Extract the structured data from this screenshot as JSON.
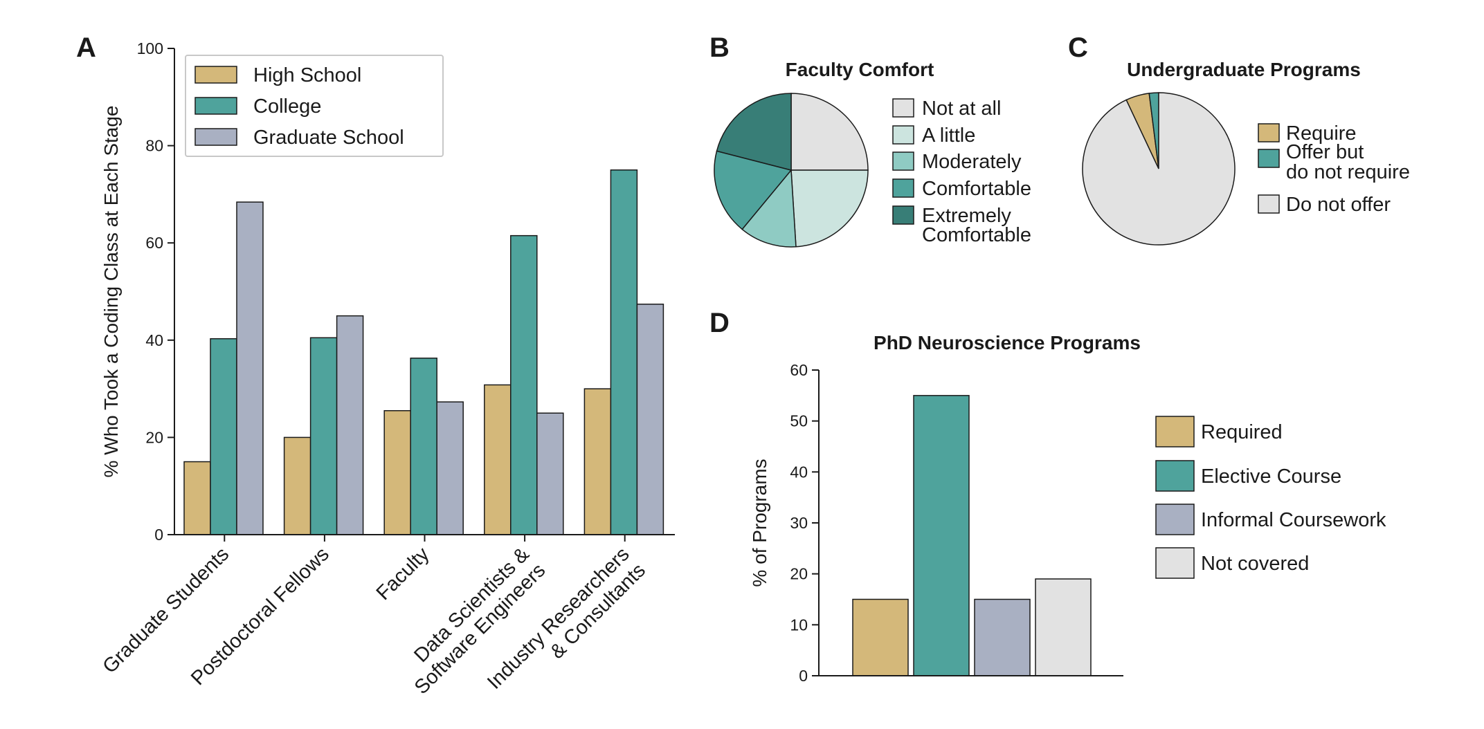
{
  "panels": {
    "a": {
      "letter": "A"
    },
    "b": {
      "letter": "B"
    },
    "c": {
      "letter": "C"
    },
    "d": {
      "letter": "D"
    }
  },
  "chart_data": [
    {
      "id": "A",
      "type": "bar",
      "title": "",
      "ylabel": "% Who Took a Coding Class at Each Stage",
      "xlabel": "",
      "ylim": [
        0,
        100
      ],
      "yticks": [
        0,
        20,
        40,
        60,
        80,
        100
      ],
      "categories": [
        "Graduate Students",
        "Postdoctoral Fellows",
        "Faculty",
        "Data Scientists & Software Engineers",
        "Industry Researchers & Consultants"
      ],
      "category_lines": [
        [
          "Graduate Students"
        ],
        [
          "Postdoctoral Fellows"
        ],
        [
          "Faculty"
        ],
        [
          "Data Scientists &",
          "Software Engineers"
        ],
        [
          "Industry Researchers",
          "& Consultants"
        ]
      ],
      "series": [
        {
          "name": "High School",
          "color": "#d4b87a",
          "values": [
            15,
            20,
            25.5,
            30.8,
            30
          ]
        },
        {
          "name": "College",
          "color": "#4fa39c",
          "values": [
            40.3,
            40.5,
            36.3,
            61.5,
            75
          ]
        },
        {
          "name": "Graduate School",
          "color": "#a9b0c2",
          "values": [
            68.4,
            45,
            27.3,
            25,
            47.4
          ]
        }
      ],
      "legend": "top-left"
    },
    {
      "id": "B",
      "type": "pie",
      "title": "Faculty Comfort",
      "slices": [
        {
          "label": "Not at all",
          "color": "#e2e2e2",
          "value": 25
        },
        {
          "label": "A little",
          "color": "#cce4df",
          "value": 24
        },
        {
          "label": "Moderately",
          "color": "#8fcbc3",
          "value": 12
        },
        {
          "label": "Comfortable",
          "color": "#4fa39c",
          "value": 18
        },
        {
          "label": "Extremely Comfortable",
          "color": "#387e77",
          "value": 21
        }
      ],
      "legend_lines": [
        [
          "Not at all"
        ],
        [
          "A little"
        ],
        [
          "Moderately"
        ],
        [
          "Comfortable"
        ],
        [
          "Extremely",
          "Comfortable"
        ]
      ],
      "legend": "right"
    },
    {
      "id": "C",
      "type": "pie",
      "title": "Undergraduate Programs",
      "slices": [
        {
          "label": "Require",
          "color": "#d4b87a",
          "value": 5
        },
        {
          "label": "Offer but do not require",
          "color": "#4fa39c",
          "value": 2
        },
        {
          "label": "Do not offer",
          "color": "#e2e2e2",
          "value": 93
        }
      ],
      "legend_lines": [
        [
          "Require"
        ],
        [
          "Offer but",
          "do not require"
        ],
        [
          "Do not offer"
        ]
      ],
      "legend": "right"
    },
    {
      "id": "D",
      "type": "bar",
      "title": "PhD Neuroscience Programs",
      "ylabel": "% of Programs",
      "xlabel": "",
      "ylim": [
        0,
        60
      ],
      "yticks": [
        0,
        10,
        20,
        30,
        40,
        50,
        60
      ],
      "categories": [
        "Required",
        "Elective Course",
        "Informal Coursework",
        "Not covered"
      ],
      "colors": [
        "#d4b87a",
        "#4fa39c",
        "#a9b0c2",
        "#e2e2e2"
      ],
      "values": [
        15,
        55,
        15,
        19
      ],
      "legend": "right"
    }
  ]
}
